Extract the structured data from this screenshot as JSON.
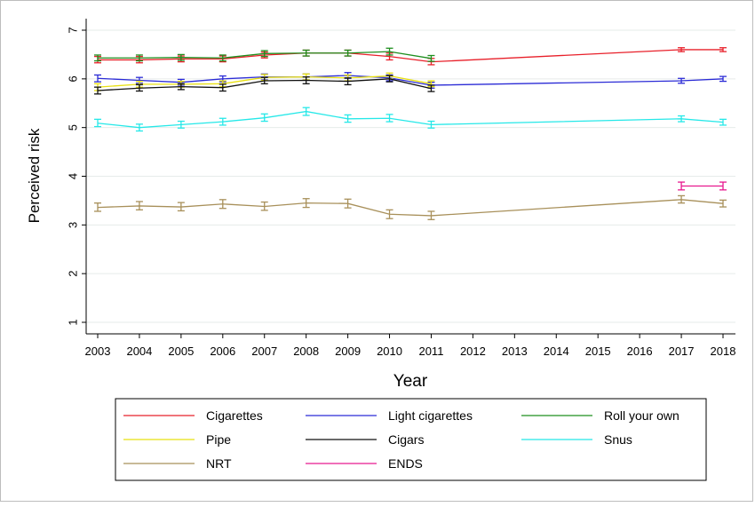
{
  "chart_data": {
    "type": "line",
    "title": "",
    "xlabel": "Year",
    "ylabel": "Perceived risk",
    "xlim": [
      2003,
      2018
    ],
    "ylim": [
      1,
      7
    ],
    "x_ticks": [
      "2003",
      "2004",
      "2005",
      "2006",
      "2007",
      "2008",
      "2009",
      "2010",
      "2011",
      "2012",
      "2013",
      "2014",
      "2015",
      "2016",
      "2017",
      "2018"
    ],
    "y_ticks": [
      "1",
      "2",
      "3",
      "4",
      "5",
      "6",
      "7"
    ],
    "grid": "horizontal",
    "legend_position": "bottom",
    "error_bars": true,
    "series": [
      {
        "name": "Cigarettes",
        "color": "#e8202a",
        "points": [
          {
            "x": 2003,
            "y": 6.39,
            "lo": 6.33,
            "hi": 6.46
          },
          {
            "x": 2004,
            "y": 6.39,
            "lo": 6.33,
            "hi": 6.46
          },
          {
            "x": 2005,
            "y": 6.41,
            "lo": 6.35,
            "hi": 6.47
          },
          {
            "x": 2006,
            "y": 6.41,
            "lo": 6.35,
            "hi": 6.47
          },
          {
            "x": 2007,
            "y": 6.49,
            "lo": 6.43,
            "hi": 6.55
          },
          {
            "x": 2008,
            "y": 6.53,
            "lo": 6.47,
            "hi": 6.59
          },
          {
            "x": 2009,
            "y": 6.53,
            "lo": 6.47,
            "hi": 6.59
          },
          {
            "x": 2010,
            "y": 6.46,
            "lo": 6.39,
            "hi": 6.53
          },
          {
            "x": 2011,
            "y": 6.35,
            "lo": 6.29,
            "hi": 6.42
          },
          {
            "x": 2017,
            "y": 6.6,
            "lo": 6.56,
            "hi": 6.64
          },
          {
            "x": 2018,
            "y": 6.6,
            "lo": 6.56,
            "hi": 6.64
          }
        ]
      },
      {
        "name": "Light cigarettes",
        "color": "#2b2bd6",
        "points": [
          {
            "x": 2003,
            "y": 6.01,
            "lo": 5.94,
            "hi": 6.08
          },
          {
            "x": 2004,
            "y": 5.97,
            "lo": 5.91,
            "hi": 6.03
          },
          {
            "x": 2005,
            "y": 5.93,
            "lo": 5.87,
            "hi": 5.99
          },
          {
            "x": 2006,
            "y": 6.0,
            "lo": 5.94,
            "hi": 6.06
          },
          {
            "x": 2007,
            "y": 6.04,
            "lo": 5.98,
            "hi": 6.1
          },
          {
            "x": 2008,
            "y": 6.04,
            "lo": 5.98,
            "hi": 6.1
          },
          {
            "x": 2009,
            "y": 6.07,
            "lo": 6.01,
            "hi": 6.13
          },
          {
            "x": 2010,
            "y": 6.02,
            "lo": 5.96,
            "hi": 6.08
          },
          {
            "x": 2011,
            "y": 5.87,
            "lo": 5.81,
            "hi": 5.93
          },
          {
            "x": 2017,
            "y": 5.96,
            "lo": 5.91,
            "hi": 6.01
          },
          {
            "x": 2018,
            "y": 6.0,
            "lo": 5.95,
            "hi": 6.05
          }
        ]
      },
      {
        "name": "Roll your own",
        "color": "#1f8f1f",
        "points": [
          {
            "x": 2003,
            "y": 6.43,
            "lo": 6.37,
            "hi": 6.49
          },
          {
            "x": 2004,
            "y": 6.43,
            "lo": 6.37,
            "hi": 6.49
          },
          {
            "x": 2005,
            "y": 6.44,
            "lo": 6.38,
            "hi": 6.5
          },
          {
            "x": 2006,
            "y": 6.43,
            "lo": 6.37,
            "hi": 6.49
          },
          {
            "x": 2007,
            "y": 6.52,
            "lo": 6.46,
            "hi": 6.58
          },
          {
            "x": 2008,
            "y": 6.53,
            "lo": 6.47,
            "hi": 6.59
          },
          {
            "x": 2009,
            "y": 6.53,
            "lo": 6.47,
            "hi": 6.59
          },
          {
            "x": 2010,
            "y": 6.56,
            "lo": 6.49,
            "hi": 6.63
          },
          {
            "x": 2011,
            "y": 6.42,
            "lo": 6.36,
            "hi": 6.48
          }
        ]
      },
      {
        "name": "Pipe",
        "color": "#e8e010",
        "points": [
          {
            "x": 2003,
            "y": 5.83,
            "lo": 5.76,
            "hi": 5.9
          },
          {
            "x": 2004,
            "y": 5.89,
            "lo": 5.83,
            "hi": 5.95
          },
          {
            "x": 2005,
            "y": 5.89,
            "lo": 5.83,
            "hi": 5.95
          },
          {
            "x": 2006,
            "y": 5.9,
            "lo": 5.84,
            "hi": 5.96
          },
          {
            "x": 2007,
            "y": 6.03,
            "lo": 5.97,
            "hi": 6.09
          },
          {
            "x": 2008,
            "y": 6.04,
            "lo": 5.98,
            "hi": 6.1
          },
          {
            "x": 2009,
            "y": 6.02,
            "lo": 5.96,
            "hi": 6.08
          },
          {
            "x": 2010,
            "y": 6.06,
            "lo": 6.0,
            "hi": 6.12
          },
          {
            "x": 2011,
            "y": 5.9,
            "lo": 5.84,
            "hi": 5.96
          }
        ]
      },
      {
        "name": "Cigars",
        "color": "#111111",
        "points": [
          {
            "x": 2003,
            "y": 5.76,
            "lo": 5.69,
            "hi": 5.83
          },
          {
            "x": 2004,
            "y": 5.81,
            "lo": 5.75,
            "hi": 5.88
          },
          {
            "x": 2005,
            "y": 5.84,
            "lo": 5.78,
            "hi": 5.9
          },
          {
            "x": 2006,
            "y": 5.82,
            "lo": 5.75,
            "hi": 5.89
          },
          {
            "x": 2007,
            "y": 5.96,
            "lo": 5.9,
            "hi": 6.03
          },
          {
            "x": 2008,
            "y": 5.97,
            "lo": 5.9,
            "hi": 6.04
          },
          {
            "x": 2009,
            "y": 5.95,
            "lo": 5.88,
            "hi": 6.02
          },
          {
            "x": 2010,
            "y": 6.0,
            "lo": 5.94,
            "hi": 6.07
          },
          {
            "x": 2011,
            "y": 5.8,
            "lo": 5.74,
            "hi": 5.87
          }
        ]
      },
      {
        "name": "Snus",
        "color": "#25e8e8",
        "points": [
          {
            "x": 2003,
            "y": 5.09,
            "lo": 5.02,
            "hi": 5.17
          },
          {
            "x": 2004,
            "y": 5.0,
            "lo": 4.93,
            "hi": 5.07
          },
          {
            "x": 2005,
            "y": 5.06,
            "lo": 4.99,
            "hi": 5.13
          },
          {
            "x": 2006,
            "y": 5.12,
            "lo": 5.05,
            "hi": 5.19
          },
          {
            "x": 2007,
            "y": 5.2,
            "lo": 5.13,
            "hi": 5.28
          },
          {
            "x": 2008,
            "y": 5.33,
            "lo": 5.25,
            "hi": 5.41
          },
          {
            "x": 2009,
            "y": 5.18,
            "lo": 5.11,
            "hi": 5.26
          },
          {
            "x": 2010,
            "y": 5.19,
            "lo": 5.12,
            "hi": 5.27
          },
          {
            "x": 2011,
            "y": 5.06,
            "lo": 4.99,
            "hi": 5.13
          },
          {
            "x": 2017,
            "y": 5.18,
            "lo": 5.12,
            "hi": 5.24
          },
          {
            "x": 2018,
            "y": 5.11,
            "lo": 5.05,
            "hi": 5.17
          }
        ]
      },
      {
        "name": "NRT",
        "color": "#a8905a",
        "points": [
          {
            "x": 2003,
            "y": 3.36,
            "lo": 3.28,
            "hi": 3.45
          },
          {
            "x": 2004,
            "y": 3.39,
            "lo": 3.31,
            "hi": 3.48
          },
          {
            "x": 2005,
            "y": 3.37,
            "lo": 3.29,
            "hi": 3.46
          },
          {
            "x": 2006,
            "y": 3.43,
            "lo": 3.34,
            "hi": 3.52
          },
          {
            "x": 2007,
            "y": 3.38,
            "lo": 3.3,
            "hi": 3.47
          },
          {
            "x": 2008,
            "y": 3.45,
            "lo": 3.36,
            "hi": 3.54
          },
          {
            "x": 2009,
            "y": 3.44,
            "lo": 3.35,
            "hi": 3.53
          },
          {
            "x": 2010,
            "y": 3.22,
            "lo": 3.13,
            "hi": 3.31
          },
          {
            "x": 2011,
            "y": 3.19,
            "lo": 3.11,
            "hi": 3.28
          },
          {
            "x": 2017,
            "y": 3.52,
            "lo": 3.45,
            "hi": 3.6
          },
          {
            "x": 2018,
            "y": 3.44,
            "lo": 3.37,
            "hi": 3.51
          }
        ]
      },
      {
        "name": "ENDS",
        "color": "#e8198f",
        "points": [
          {
            "x": 2017,
            "y": 3.8,
            "lo": 3.72,
            "hi": 3.88
          },
          {
            "x": 2018,
            "y": 3.8,
            "lo": 3.72,
            "hi": 3.88
          }
        ]
      }
    ]
  }
}
